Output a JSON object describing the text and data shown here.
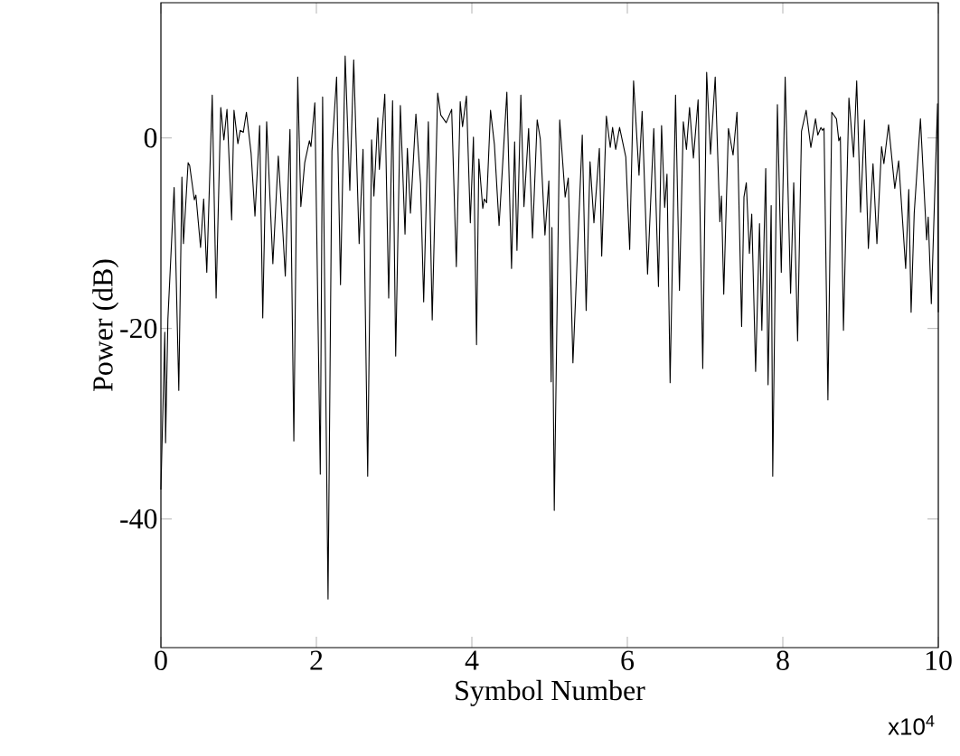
{
  "chart_data": {
    "type": "line",
    "xlabel": "Symbol Number",
    "ylabel": "Power (dB)",
    "annotations": [
      "x10$^{4}$"
    ],
    "xlim": [
      0,
      10
    ],
    "xticks": [
      0,
      2,
      4,
      6,
      8,
      10
    ],
    "ylim": [
      -53.5,
      14.2
    ],
    "yticks": [
      -40,
      -20,
      0
    ],
    "grid": false,
    "marker": "none",
    "line_style": "solid",
    "series": [
      {
        "color": "#000000",
        "x": [
          0,
          0.05,
          0.06,
          0.09,
          0.17,
          0.23,
          0.27,
          0.29,
          0.35,
          0.37,
          0.43,
          0.45,
          0.51,
          0.55,
          0.59,
          0.66,
          0.71,
          0.77,
          0.81,
          0.85,
          0.91,
          0.94,
          0.99,
          1.02,
          1.06,
          1.1,
          1.16,
          1.21,
          1.27,
          1.31,
          1.36,
          1.44,
          1.51,
          1.57,
          1.6,
          1.66,
          1.71,
          1.76,
          1.8,
          1.85,
          1.91,
          1.93,
          1.98,
          2.05,
          2.08,
          2.15,
          2.2,
          2.26,
          2.31,
          2.37,
          2.43,
          2.48,
          2.55,
          2.6,
          2.66,
          2.71,
          2.74,
          2.79,
          2.81,
          2.88,
          2.93,
          2.98,
          3.02,
          3.08,
          3.14,
          3.17,
          3.21,
          3.28,
          3.34,
          3.38,
          3.44,
          3.49,
          3.56,
          3.6,
          3.67,
          3.74,
          3.8,
          3.85,
          3.88,
          3.93,
          3.98,
          4.02,
          4.06,
          4.09,
          4.14,
          4.16,
          4.19,
          4.24,
          4.29,
          4.35,
          4.45,
          4.51,
          4.55,
          4.58,
          4.63,
          4.67,
          4.73,
          4.78,
          4.84,
          4.88,
          4.94,
          4.99,
          5.02,
          5.03,
          5.06,
          5.13,
          5.2,
          5.24,
          5.3,
          5.42,
          5.47,
          5.52,
          5.57,
          5.64,
          5.67,
          5.73,
          5.78,
          5.81,
          5.85,
          5.9,
          5.98,
          6.03,
          6.08,
          6.15,
          6.19,
          6.26,
          6.34,
          6.4,
          6.44,
          6.48,
          6.51,
          6.55,
          6.62,
          6.67,
          6.72,
          6.76,
          6.8,
          6.85,
          6.91,
          6.97,
          7.02,
          7.07,
          7.13,
          7.19,
          7.21,
          7.24,
          7.3,
          7.36,
          7.41,
          7.47,
          7.5,
          7.53,
          7.57,
          7.6,
          7.65,
          7.7,
          7.73,
          7.78,
          7.81,
          7.85,
          7.87,
          7.93,
          7.98,
          8.03,
          8.1,
          8.14,
          8.19,
          8.24,
          8.3,
          8.36,
          8.42,
          8.45,
          8.49,
          8.51,
          8.53,
          8.58,
          8.63,
          8.69,
          8.72,
          8.74,
          8.78,
          8.85,
          8.91,
          8.95,
          9.0,
          9.05,
          9.1,
          9.16,
          9.21,
          9.27,
          9.3,
          9.36,
          9.44,
          9.49,
          9.58,
          9.62,
          9.65,
          9.69,
          9.77,
          9.85,
          9.87,
          9.91,
          9.99,
          10
        ],
        "values": [
          -36.9,
          -20.4,
          -32,
          -19,
          -5.2,
          -26.5,
          -4.1,
          -11.1,
          -2.6,
          -2.9,
          -6.5,
          -6,
          -11.5,
          -6.4,
          -14.1,
          4.5,
          -16.8,
          3.2,
          -0.2,
          3.0,
          -8.6,
          2.9,
          -0.6,
          0.8,
          0.6,
          2.7,
          -1.6,
          -8.2,
          1.3,
          -18.9,
          1.7,
          -13.2,
          -1.9,
          -10.1,
          -14.5,
          0.9,
          -31.8,
          6.4,
          -7.2,
          -2.6,
          -0.3,
          -0.9,
          3.7,
          -35.3,
          4.3,
          -48.4,
          -1.4,
          6.4,
          -15.4,
          8.6,
          -5.5,
          8.2,
          -11.1,
          -1.2,
          -35.5,
          -0.2,
          -6.1,
          2.1,
          -3.3,
          4.6,
          -16.8,
          3.9,
          -22.9,
          3.4,
          -10.1,
          -1.1,
          -7.9,
          2.5,
          -4.8,
          -17.2,
          1.7,
          -19.1,
          4.7,
          2.4,
          1.6,
          3.0,
          -13.5,
          3.8,
          1.2,
          4.4,
          -8.9,
          0.1,
          -21.7,
          -2.2,
          -7.4,
          -6.4,
          -6.8,
          2.9,
          -0.7,
          -9.2,
          4.8,
          -13.7,
          -0.4,
          -11.8,
          4.5,
          -7.2,
          1.0,
          -10.5,
          1.9,
          -0.1,
          -10.2,
          -4.5,
          -25.6,
          -9.4,
          -39.1,
          1.9,
          -6.2,
          -4.2,
          -23.6,
          0.3,
          -18.1,
          -2.5,
          -8.9,
          -1.1,
          -12.4,
          2.3,
          -1.0,
          1.1,
          -1.2,
          1.1,
          -2.0,
          -11.7,
          6.0,
          -3.9,
          2.8,
          -14.3,
          1.0,
          -15.6,
          1.3,
          -7.3,
          -3.8,
          -25.7,
          4.5,
          -16.0,
          1.7,
          -1.2,
          3.2,
          -2.1,
          4.0,
          -24.2,
          6.9,
          -1.7,
          6.4,
          -8.8,
          -6.1,
          -16.4,
          1.0,
          -1.8,
          2.7,
          -19.8,
          -6.2,
          -4.7,
          -12.1,
          -8.0,
          -24.5,
          -9.0,
          -20.2,
          -3.2,
          -25.9,
          -7.1,
          -35.5,
          3.5,
          -14.1,
          6.4,
          -16.3,
          -4.7,
          -21.3,
          0.7,
          2.9,
          -1.0,
          2.0,
          0.3,
          1.1,
          0.8,
          1.0,
          -27.5,
          2.7,
          2.0,
          -0.3,
          0.1,
          -20.2,
          4.2,
          -2.0,
          6.0,
          -7.8,
          1.9,
          -11.6,
          -2.7,
          -11.1,
          -0.9,
          -2.7,
          1.4,
          -5.3,
          -2.4,
          -13.7,
          -5.4,
          -18.3,
          -7.9,
          2.0,
          -10.7,
          -8.3,
          -17.4,
          3.6,
          -18.3
        ]
      }
    ]
  }
}
